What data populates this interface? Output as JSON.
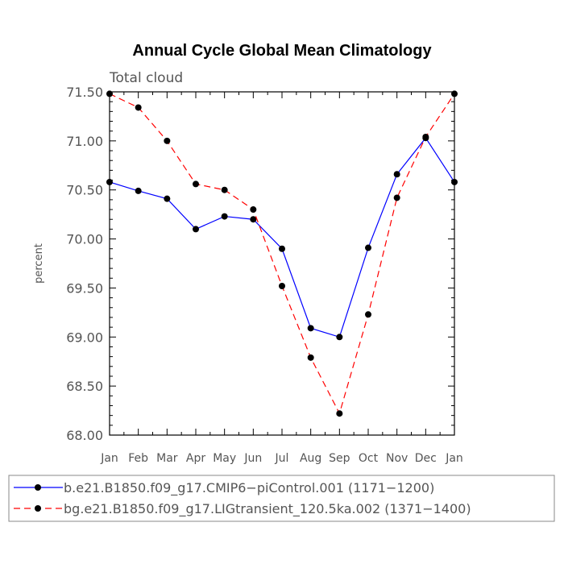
{
  "chart_data": {
    "type": "line",
    "title": "Annual Cycle Global Mean Climatology",
    "subtitle": "Total cloud",
    "xlabel": "",
    "ylabel": "percent",
    "categories": [
      "Jan",
      "Feb",
      "Mar",
      "Apr",
      "May",
      "Jun",
      "Jul",
      "Aug",
      "Sep",
      "Oct",
      "Nov",
      "Dec",
      "Jan"
    ],
    "ylim": [
      68.0,
      71.5
    ],
    "yticks": [
      "68.00",
      "68.50",
      "69.00",
      "69.50",
      "70.00",
      "70.50",
      "71.00",
      "71.50"
    ],
    "series": [
      {
        "name": "b.e21.B1850.f09_g17.CMIP6−piControl.001 (1171−1200)",
        "color": "#0000ff",
        "style": "solid",
        "values": [
          70.58,
          70.49,
          70.41,
          70.1,
          70.23,
          70.2,
          69.9,
          69.09,
          69.0,
          69.91,
          70.66,
          71.03,
          70.58
        ]
      },
      {
        "name": "bg.e21.B1850.f09_g17.LIGtransient_120.5ka.002 (1371−1400)",
        "color": "#ff0000",
        "style": "dashed",
        "values": [
          71.48,
          71.34,
          71.0,
          70.56,
          70.5,
          70.3,
          69.52,
          68.79,
          68.22,
          69.23,
          70.42,
          71.04,
          71.48
        ]
      }
    ],
    "legend_position": "bottom"
  }
}
